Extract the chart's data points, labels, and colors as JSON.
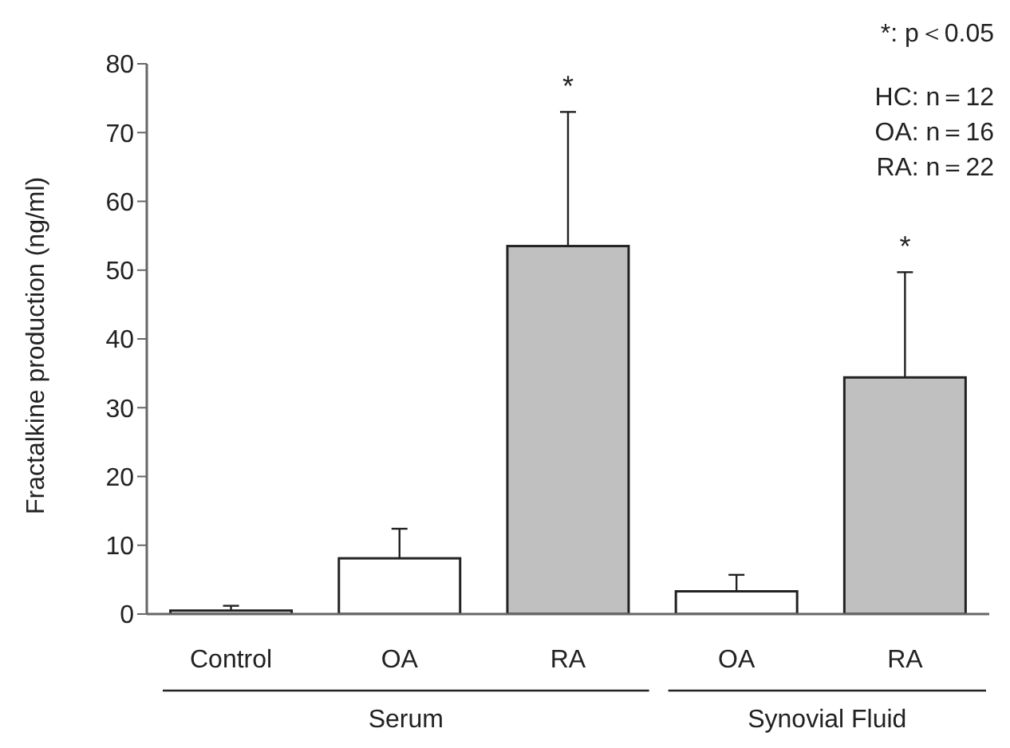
{
  "chart_data": {
    "type": "bar",
    "ylabel": "Fractalkine production (ng/ml)",
    "categories": [
      "Control",
      "OA",
      "RA",
      "OA",
      "RA"
    ],
    "values": [
      0.5,
      8.1,
      53.5,
      3.3,
      34.4
    ],
    "colors": [
      "#ffffff",
      "#ffffff",
      "#c0c0c0",
      "#ffffff",
      "#c0c0c0"
    ],
    "errors": [
      [
        0.5,
        1.2
      ],
      [
        8.1,
        12.4
      ],
      [
        53.5,
        73
      ],
      [
        3.3,
        5.7
      ],
      [
        34.4,
        49.7
      ]
    ],
    "ylim": [
      0,
      80
    ],
    "yticks": [
      0,
      10,
      20,
      30,
      40,
      50,
      60,
      70,
      80
    ],
    "grid": false,
    "legend": false,
    "annotations": [
      "*: p＜0.05",
      "HC: n＝12",
      "OA: n＝16",
      "RA: n＝22",
      "*",
      "*",
      "Serum",
      "Synovial Fluid"
    ]
  }
}
